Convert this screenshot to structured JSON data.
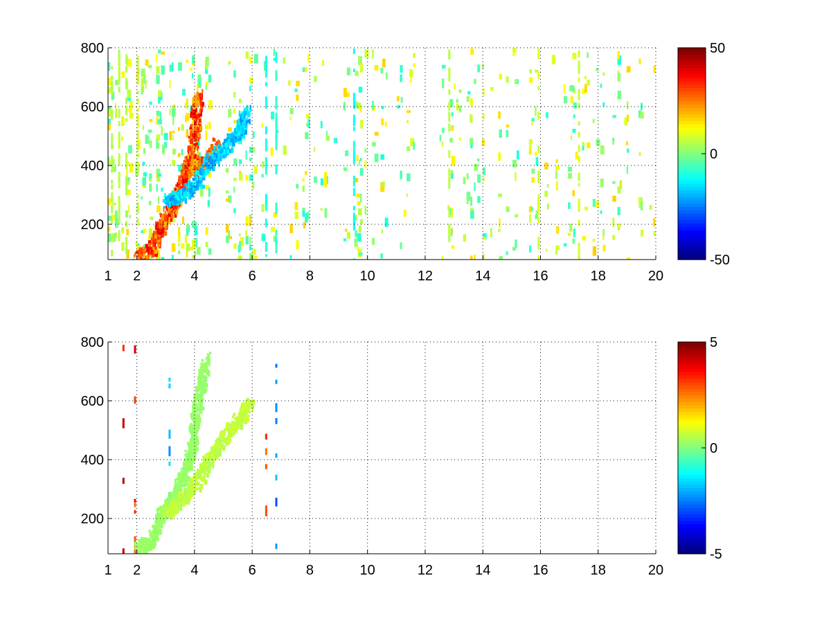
{
  "figure": {
    "background": "#ffffff",
    "colormap": "jet"
  },
  "chart_data": [
    {
      "type": "heatmap",
      "title": "",
      "xlabel": "",
      "ylabel": "",
      "xlim": [
        1,
        20
      ],
      "ylim": [
        80,
        800
      ],
      "grid": true,
      "x_ticks": [
        1,
        2,
        4,
        6,
        8,
        10,
        12,
        14,
        16,
        18,
        20
      ],
      "x_tick_labels": [
        "1",
        "2",
        "4",
        "6",
        "8",
        "10",
        "12",
        "14",
        "16",
        "18",
        "20"
      ],
      "y_ticks": [
        200,
        400,
        600,
        800
      ],
      "y_tick_labels": [
        "200",
        "400",
        "600",
        "800"
      ],
      "colorbar": {
        "clim": [
          -50,
          50
        ],
        "ticks": [
          -50,
          0,
          50
        ],
        "tick_labels": [
          "-50",
          "0",
          "50"
        ]
      },
      "ridges": [
        {
          "points": [
            [
              2.0,
              90
            ],
            [
              2.5,
              120
            ],
            [
              2.8,
              200
            ],
            [
              3.1,
              250
            ],
            [
              3.4,
              300
            ],
            [
              3.7,
              380
            ],
            [
              3.9,
              450
            ],
            [
              4.0,
              550
            ],
            [
              4.1,
              650
            ]
          ],
          "value": 38
        },
        {
          "points": [
            [
              3.9,
              390
            ],
            [
              4.2,
              410
            ],
            [
              4.5,
              420
            ],
            [
              4.8,
              480
            ]
          ],
          "value": 32
        },
        {
          "points": [
            [
              3.0,
              280
            ],
            [
              3.5,
              300
            ],
            [
              4.0,
              340
            ],
            [
              4.5,
              420
            ],
            [
              5.0,
              460
            ],
            [
              5.5,
              520
            ],
            [
              5.8,
              600
            ]
          ],
          "value": -22
        }
      ]
    },
    {
      "type": "heatmap",
      "title": "",
      "xlabel": "",
      "ylabel": "",
      "xlim": [
        1,
        20
      ],
      "ylim": [
        80,
        800
      ],
      "grid": true,
      "x_ticks": [
        1,
        2,
        4,
        6,
        8,
        10,
        12,
        14,
        16,
        18,
        20
      ],
      "x_tick_labels": [
        "1",
        "2",
        "4",
        "6",
        "8",
        "10",
        "12",
        "14",
        "16",
        "18",
        "20"
      ],
      "y_ticks": [
        200,
        400,
        600,
        800
      ],
      "y_tick_labels": [
        "200",
        "400",
        "600",
        "800"
      ],
      "colorbar": {
        "clim": [
          -5,
          5
        ],
        "ticks": [
          -5,
          0,
          5
        ],
        "tick_labels": [
          "-5",
          "0",
          "5"
        ]
      },
      "ridges": [
        {
          "points": [
            [
              2.0,
              100
            ],
            [
              2.5,
              130
            ],
            [
              2.8,
              220
            ],
            [
              3.1,
              250
            ],
            [
              3.4,
              300
            ],
            [
              3.7,
              380
            ],
            [
              3.9,
              450
            ],
            [
              4.0,
              550
            ],
            [
              4.2,
              650
            ],
            [
              4.4,
              760
            ]
          ],
          "value": 0.3
        },
        {
          "points": [
            [
              3.0,
              230
            ],
            [
              3.5,
              260
            ],
            [
              4.0,
              320
            ],
            [
              4.5,
              410
            ],
            [
              5.0,
              480
            ],
            [
              5.5,
              540
            ],
            [
              5.9,
              600
            ]
          ],
          "value": 0.8
        }
      ]
    }
  ]
}
